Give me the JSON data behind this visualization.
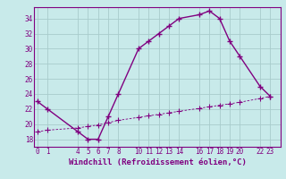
{
  "xlabel": "Windchill (Refroidissement éolien,°C)",
  "x_temperature": [
    0,
    1,
    4,
    5,
    6,
    7,
    8,
    10,
    11,
    12,
    13,
    14,
    16,
    17,
    18,
    19,
    20,
    22,
    23
  ],
  "y_temperature": [
    23,
    22,
    19,
    18,
    18,
    21,
    24,
    30,
    31,
    32,
    33,
    34,
    34.5,
    35,
    34,
    31,
    29,
    25,
    23.7
  ],
  "x_windchill": [
    0,
    1,
    4,
    5,
    6,
    7,
    8,
    10,
    11,
    12,
    13,
    14,
    16,
    17,
    18,
    19,
    20,
    22,
    23
  ],
  "y_windchill": [
    19,
    19.2,
    19.5,
    19.7,
    19.9,
    20.2,
    20.5,
    20.9,
    21.1,
    21.3,
    21.5,
    21.7,
    22.1,
    22.3,
    22.5,
    22.7,
    22.9,
    23.4,
    23.7
  ],
  "line_color": "#800080",
  "bg_color": "#c8eaea",
  "plot_bg_color": "#c8eaea",
  "ylim": [
    17,
    35.5
  ],
  "xlim": [
    -0.3,
    24
  ],
  "yticks": [
    18,
    20,
    22,
    24,
    26,
    28,
    30,
    32,
    34
  ],
  "xticks": [
    0,
    1,
    4,
    5,
    6,
    7,
    8,
    10,
    11,
    12,
    13,
    14,
    16,
    17,
    18,
    19,
    20,
    22,
    23
  ],
  "grid_color": "#a8cccc",
  "marker": "+",
  "linewidth": 1.0,
  "markersize": 4,
  "tick_labelsize": 5.5,
  "xlabel_fontsize": 6.5,
  "xlabel_color": "#800080",
  "tick_color": "#800080",
  "spine_color": "#800080"
}
